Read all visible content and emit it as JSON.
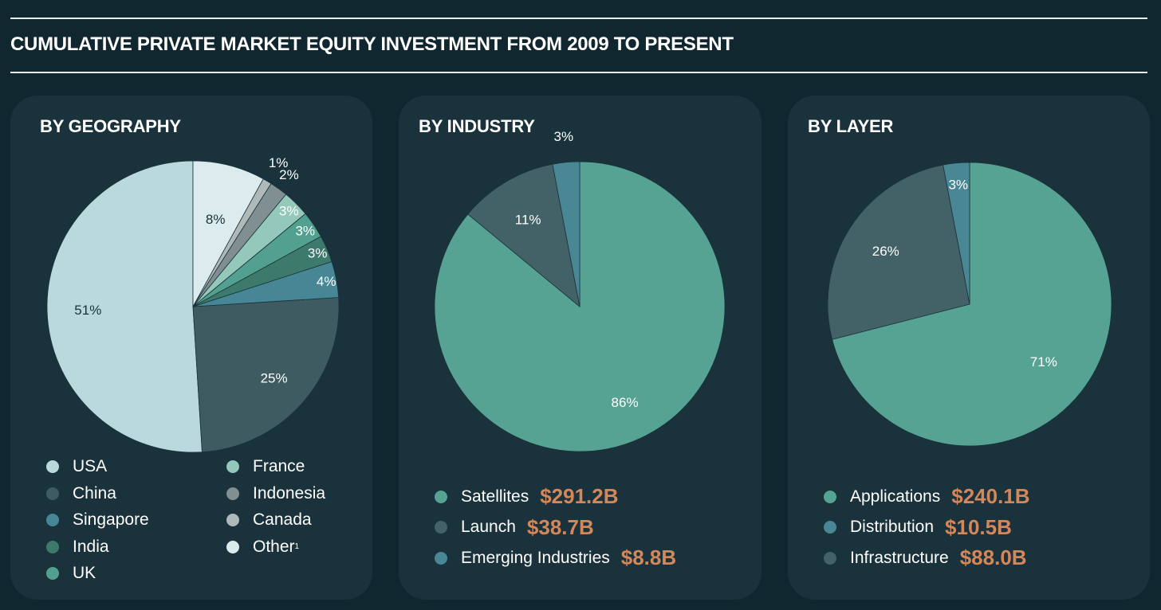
{
  "title": "CUMULATIVE PRIVATE MARKET EQUITY INVESTMENT FROM 2009 TO PRESENT",
  "chart_data": [
    {
      "type": "pie",
      "title": "BY GEOGRAPHY",
      "slices": [
        {
          "name": "USA",
          "value": 51,
          "label": "51%",
          "color": "#b9d9dc"
        },
        {
          "name": "China",
          "value": 25,
          "label": "25%",
          "color": "#3e5b61"
        },
        {
          "name": "Singapore",
          "value": 4,
          "label": "4%",
          "color": "#468695"
        },
        {
          "name": "India",
          "value": 3,
          "label": "3%",
          "color": "#3e7a6c"
        },
        {
          "name": "UK",
          "value": 3,
          "label": "3%",
          "color": "#52a08f"
        },
        {
          "name": "France",
          "value": 3,
          "label": "3%",
          "color": "#93c8bb"
        },
        {
          "name": "Indonesia",
          "value": 2,
          "label": "2%",
          "color": "#7f8f92"
        },
        {
          "name": "Canada",
          "value": 1,
          "label": "1%",
          "color": "#b0b9ba"
        },
        {
          "name": "Other",
          "value": 8,
          "label": "8%",
          "color": "#dcebee"
        }
      ],
      "legend": [
        {
          "name": "USA",
          "color": "#b9d9dc"
        },
        {
          "name": "China",
          "color": "#3e5b61"
        },
        {
          "name": "Singapore",
          "color": "#468695"
        },
        {
          "name": "India",
          "color": "#3e7a6c"
        },
        {
          "name": "UK",
          "color": "#52a08f"
        },
        {
          "name": "France",
          "color": "#93c8bb"
        },
        {
          "name": "Indonesia",
          "color": "#7f8f92"
        },
        {
          "name": "Canada",
          "color": "#b0b9ba"
        },
        {
          "name": "Other",
          "footnote": "1",
          "color": "#dcebee"
        }
      ]
    },
    {
      "type": "pie",
      "title": "BY INDUSTRY",
      "slices": [
        {
          "name": "Satellites",
          "value": 86,
          "label": "86%",
          "color": "#56a393"
        },
        {
          "name": "Launch",
          "value": 11,
          "label": "11%",
          "color": "#436267"
        },
        {
          "name": "Emerging Industries",
          "value": 3,
          "label": "3%",
          "color": "#4a8795"
        }
      ],
      "legend": [
        {
          "name": "Satellites",
          "amount": "$291.2B",
          "color": "#56a393"
        },
        {
          "name": "Launch",
          "amount": "$38.7B",
          "color": "#436267"
        },
        {
          "name": "Emerging Industries",
          "amount": "$8.8B",
          "color": "#4a8795"
        }
      ]
    },
    {
      "type": "pie",
      "title": "BY LAYER",
      "slices": [
        {
          "name": "Applications",
          "value": 71,
          "label": "71%",
          "color": "#56a393"
        },
        {
          "name": "Infrastructure",
          "value": 26,
          "label": "26%",
          "color": "#436267"
        },
        {
          "name": "Distribution",
          "value": 3,
          "label": "3%",
          "color": "#4a8795"
        }
      ],
      "legend": [
        {
          "name": "Applications",
          "amount": "$240.1B",
          "color": "#56a393"
        },
        {
          "name": "Distribution",
          "amount": "$10.5B",
          "color": "#4a8795"
        },
        {
          "name": "Infrastructure",
          "amount": "$88.0B",
          "color": "#436267"
        }
      ]
    }
  ]
}
